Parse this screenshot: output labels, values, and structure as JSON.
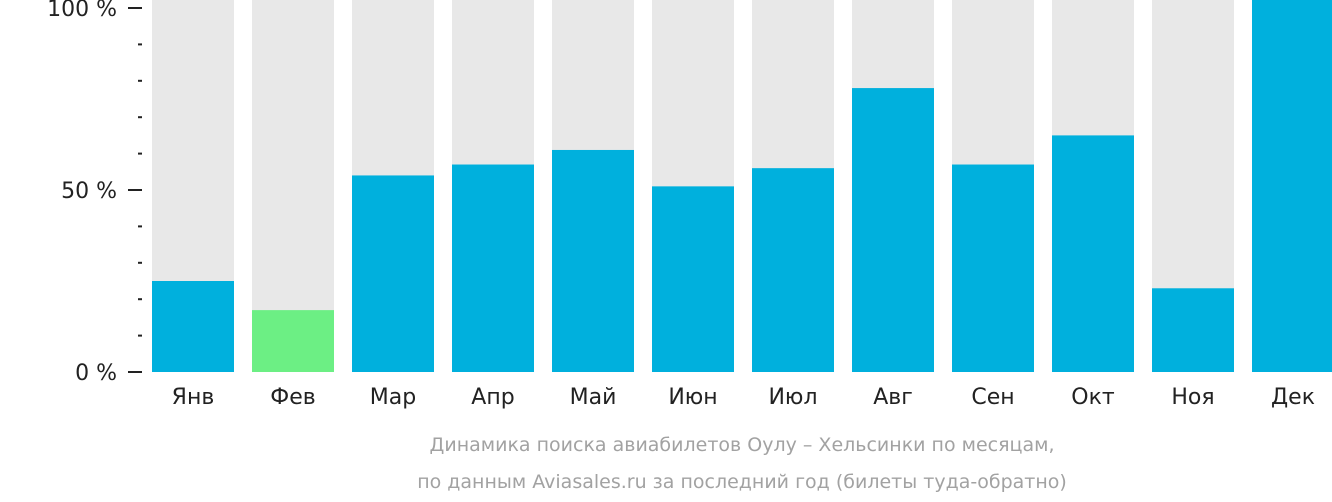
{
  "chart_data": {
    "type": "bar",
    "categories": [
      "Янв",
      "Фев",
      "Мар",
      "Апр",
      "Май",
      "Июн",
      "Июл",
      "Авг",
      "Сен",
      "Окт",
      "Ноя",
      "Дек"
    ],
    "values": [
      25,
      17,
      54,
      57,
      61,
      51,
      56,
      78,
      57,
      65,
      23,
      100
    ],
    "ylim": [
      0,
      100
    ],
    "yticks": [
      {
        "value": 0,
        "label": "0 %"
      },
      {
        "value": 50,
        "label": "50 %"
      },
      {
        "value": 100,
        "label": "100 %"
      }
    ],
    "ymajor": [
      0,
      50,
      100
    ],
    "yminor": [
      10,
      20,
      30,
      40,
      60,
      70,
      80,
      90
    ],
    "highlight_index": 1,
    "colors": {
      "bar": "#00b0dd",
      "highlight": "#6cef84",
      "background_bar": "#e8e8e8",
      "axis": "#222222",
      "caption": "#a2a2a2"
    },
    "caption_lines": [
      "Динамика поиска авиабилетов Оулу – Хельсинки по месяцам,",
      "по данным Aviasales.ru за последний год (билеты туда-обратно)"
    ]
  }
}
